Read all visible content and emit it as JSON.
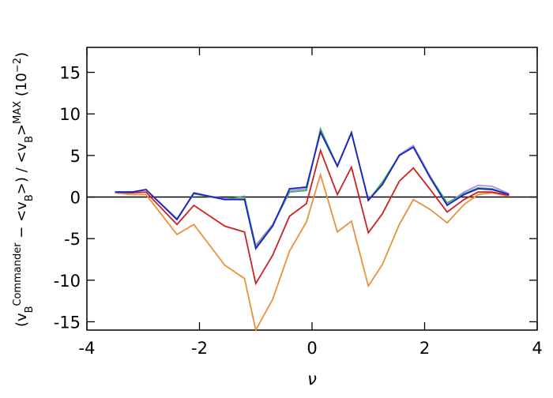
{
  "chart_data": {
    "type": "line",
    "xlabel": "ν",
    "ylabel_parts": [
      {
        "text": "(v",
        "role": "normal"
      },
      {
        "text": "B",
        "role": "sub"
      },
      {
        "text": "Commander",
        "role": "sup"
      },
      {
        "text": " − <v",
        "role": "normal"
      },
      {
        "text": "B",
        "role": "sub"
      },
      {
        "text": ">) / <v",
        "role": "normal"
      },
      {
        "text": "B",
        "role": "sub"
      },
      {
        "text": ">",
        "role": "normal"
      },
      {
        "text": "MAX",
        "role": "sup"
      },
      {
        "text": " (10",
        "role": "normal"
      },
      {
        "text": "−2",
        "role": "sup"
      },
      {
        "text": ")",
        "role": "normal"
      }
    ],
    "x": [
      -3.5,
      -3.2,
      -2.95,
      -2.4,
      -2.1,
      -1.55,
      -1.2,
      -1.0,
      -0.7,
      -0.4,
      -0.1,
      0.15,
      0.45,
      0.7,
      1.0,
      1.25,
      1.55,
      1.8,
      2.1,
      2.4,
      2.7,
      2.95,
      3.2,
      3.5
    ],
    "series": [
      {
        "color": "#e8913a",
        "values": [
          0.5,
          0.3,
          0.3,
          -4.5,
          -3.3,
          -8.2,
          -9.8,
          -16,
          -12.3,
          -6.5,
          -3.0,
          2.7,
          -4.2,
          -2.9,
          -10.7,
          -8.1,
          -3.3,
          -0.3,
          -1.5,
          -3.1,
          -0.9,
          0.3,
          0.5,
          0.1
        ]
      },
      {
        "color": "#cc2222",
        "values": [
          0.6,
          0.5,
          0.6,
          -3.3,
          -1.0,
          -3.5,
          -4.2,
          -10.4,
          -7.0,
          -2.3,
          -0.8,
          5.6,
          0.3,
          3.6,
          -4.3,
          -2.0,
          1.9,
          3.5,
          0.9,
          -1.8,
          -0.3,
          0.6,
          0.6,
          0.2
        ]
      },
      {
        "color": "#b088e8",
        "values": [
          0.6,
          0.6,
          0.9,
          -2.6,
          0.4,
          -0.2,
          -0.2,
          -5.8,
          -3.3,
          0.8,
          1.0,
          8.0,
          3.8,
          7.8,
          -0.3,
          1.6,
          5.1,
          6.2,
          2.5,
          -0.8,
          0.6,
          1.4,
          1.3,
          0.4
        ]
      },
      {
        "color": "#44aa55",
        "values": [
          0.6,
          0.6,
          0.9,
          -2.7,
          0.4,
          -0.3,
          0.1,
          -6.0,
          -3.4,
          0.6,
          0.8,
          8.2,
          3.7,
          7.8,
          -0.4,
          1.8,
          5.0,
          6.0,
          2.4,
          -0.7,
          0.4,
          1.1,
          1.0,
          0.3
        ]
      },
      {
        "color": "#1a22cc",
        "values": [
          0.6,
          0.6,
          0.9,
          -2.7,
          0.5,
          -0.3,
          -0.3,
          -6.2,
          -3.5,
          1.0,
          1.2,
          7.8,
          3.7,
          7.7,
          -0.4,
          1.5,
          5.0,
          6.0,
          2.3,
          -1.0,
          0.3,
          1.0,
          0.9,
          0.3
        ]
      }
    ],
    "xlim": [
      -4,
      4
    ],
    "xticks": [
      -4,
      -2,
      0,
      2,
      4
    ],
    "ylim": [
      -16,
      18
    ],
    "yticks": [
      -15,
      -10,
      -5,
      0,
      5,
      10,
      15
    ],
    "reference_line": 0
  }
}
